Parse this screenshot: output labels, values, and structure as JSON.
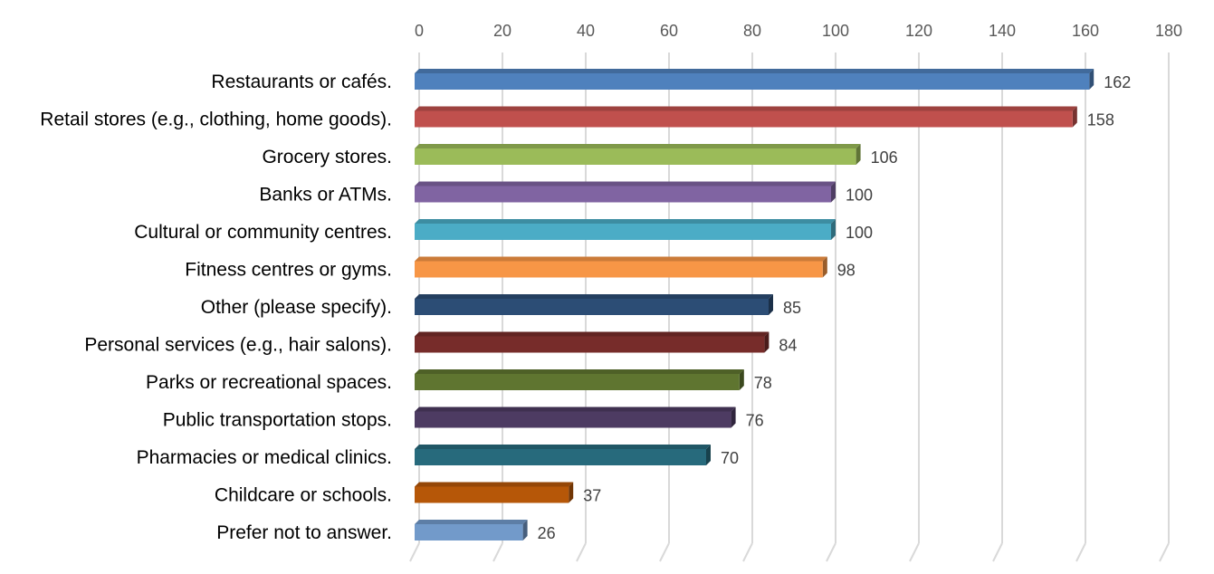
{
  "chart_data": {
    "type": "bar",
    "orientation": "horizontal",
    "style": "3d",
    "categories": [
      "Restaurants or cafés.",
      "Retail stores (e.g., clothing, home goods).",
      "Grocery stores.",
      "Banks or ATMs.",
      "Cultural or community centres.",
      "Fitness centres or gyms.",
      "Other (please specify).",
      "Personal services (e.g., hair salons).",
      "Parks or recreational spaces.",
      "Public transportation stops.",
      "Pharmacies or medical clinics.",
      "Childcare or schools.",
      "Prefer not to answer."
    ],
    "values": [
      162,
      158,
      106,
      100,
      100,
      98,
      85,
      84,
      78,
      76,
      70,
      37,
      26
    ],
    "data_labels": [
      "162",
      "158",
      "106",
      "100",
      "100",
      "98",
      "85",
      "84",
      "78",
      "76",
      "70",
      "37",
      "26"
    ],
    "colors": [
      "#4f81bd",
      "#c0504d",
      "#9bbb59",
      "#8064a2",
      "#4bacc6",
      "#f79646",
      "#2c4d75",
      "#772c2a",
      "#5f7530",
      "#4d3b62",
      "#276a7c",
      "#b65708",
      "#729aca"
    ],
    "title": "",
    "xlabel": "",
    "ylabel": "",
    "xlim": [
      0,
      180
    ],
    "x_ticks": [
      0,
      20,
      40,
      60,
      80,
      100,
      120,
      140,
      160,
      180
    ],
    "x_tick_labels": [
      "0",
      "20",
      "40",
      "60",
      "80",
      "100",
      "120",
      "140",
      "160",
      "180"
    ],
    "axis_position": "top",
    "grid": true,
    "legend": "none"
  }
}
